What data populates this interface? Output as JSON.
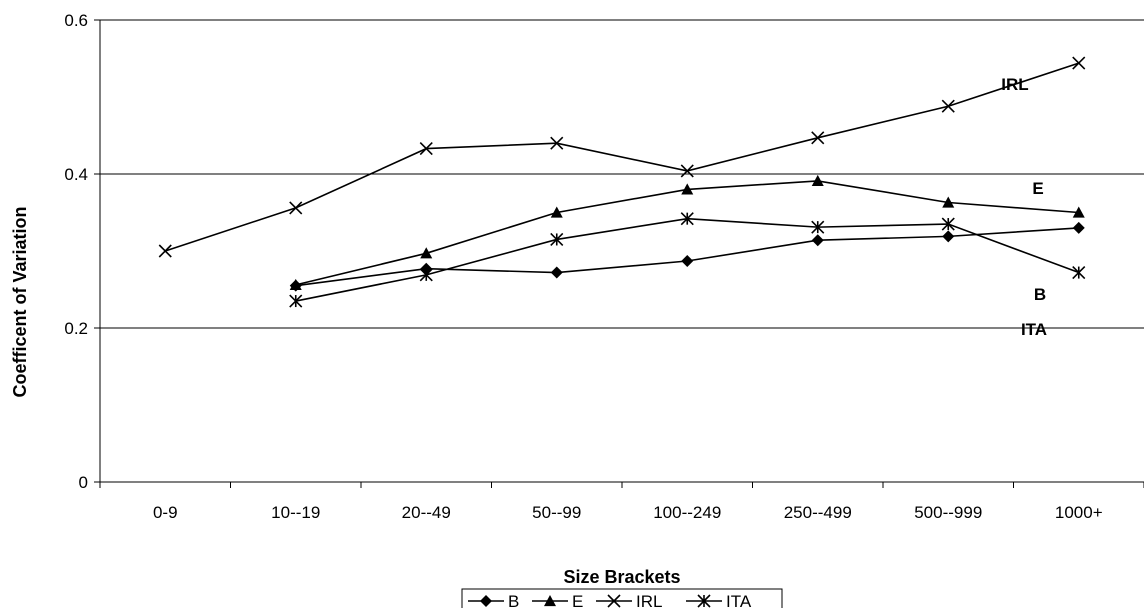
{
  "chart_data": {
    "type": "line",
    "title": "",
    "xlabel": "Size Brackets",
    "ylabel": "Coefficent of Variation",
    "categories": [
      "0-9",
      "10--19",
      "20--49",
      "50--99",
      "100--249",
      "250--499",
      "500--999",
      "1000+"
    ],
    "ylim": [
      0,
      0.6
    ],
    "yticks": [
      "0",
      "0.2",
      "0.4",
      "0.6"
    ],
    "ytick_values": [
      0,
      0.2,
      0.4,
      0.6
    ],
    "grid": "horizontal",
    "legend_position": "bottom",
    "series": [
      {
        "name": "B",
        "marker": "diamond",
        "values": [
          null,
          0.255,
          0.277,
          0.272,
          0.287,
          0.314,
          0.319,
          0.33
        ]
      },
      {
        "name": "E",
        "marker": "triangle",
        "values": [
          null,
          0.256,
          0.297,
          0.35,
          0.38,
          0.391,
          0.363,
          0.35
        ]
      },
      {
        "name": "IRL",
        "marker": "x",
        "values": [
          0.3,
          0.356,
          0.433,
          0.44,
          0.404,
          0.447,
          0.488,
          0.544
        ]
      },
      {
        "name": "ITA",
        "marker": "asterisk",
        "values": [
          null,
          0.235,
          0.269,
          0.315,
          0.342,
          0.331,
          0.335,
          0.272
        ]
      }
    ],
    "annotations": [
      {
        "text": "IRL",
        "series": "IRL"
      },
      {
        "text": "E",
        "series": "E"
      },
      {
        "text": "B",
        "series": "B"
      },
      {
        "text": "ITA",
        "series": "ITA"
      }
    ]
  }
}
